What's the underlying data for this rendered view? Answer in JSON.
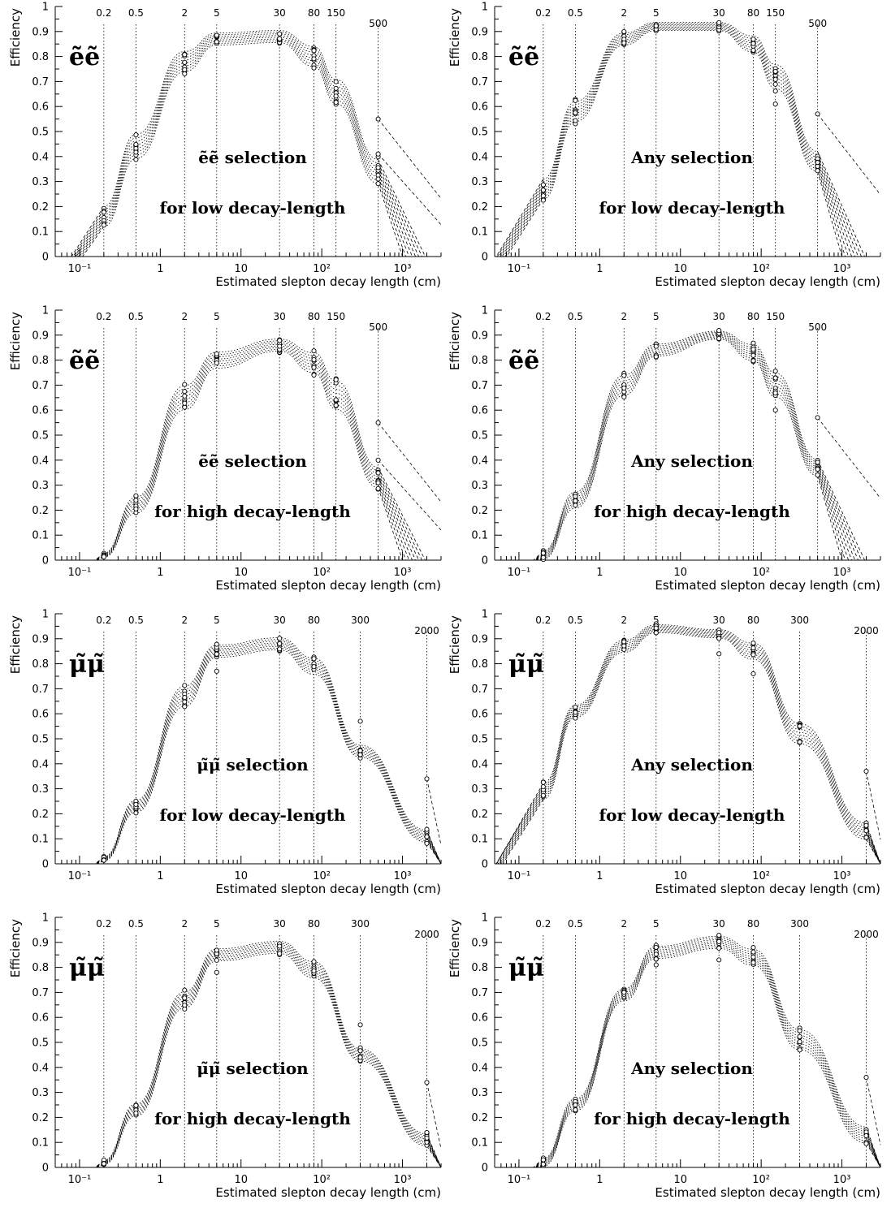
{
  "chart_data": [
    {
      "type": "scatter",
      "particle_label": "ẽẽ",
      "selection_label": "ẽẽ selection",
      "range_label": "for low decay-length",
      "ylabel": "Efficiency",
      "xlabel": "Estimated slepton decay length (cm)",
      "x_scale": "log",
      "xlim": [
        0.05,
        3000
      ],
      "ylim": [
        0,
        1
      ],
      "y_ticks": [
        "0",
        "0.1",
        "0.2",
        "0.3",
        "0.4",
        "0.5",
        "0.6",
        "0.7",
        "0.8",
        "0.9",
        "1"
      ],
      "x_ticks": [
        "10⁻¹",
        "1",
        "10",
        "10²",
        "10³"
      ],
      "markers": [
        0.2,
        0.5,
        2,
        5,
        30,
        80,
        150,
        500
      ],
      "marker_labels": [
        "0.2",
        "0.5",
        "2",
        "5",
        "30",
        "80",
        "150",
        "500"
      ],
      "mean_efficiency": [
        0.16,
        0.44,
        0.78,
        0.87,
        0.88,
        0.8,
        0.66,
        0.34
      ],
      "spread": [
        0.05,
        0.06,
        0.05,
        0.03,
        0.03,
        0.05,
        0.06,
        0.06
      ],
      "outliers": [
        {
          "x": 500,
          "y": 0.55
        },
        {
          "x": 500,
          "y": 0.41
        }
      ]
    },
    {
      "type": "scatter",
      "particle_label": "ẽẽ",
      "selection_label": "Any selection",
      "range_label": "for low decay-length",
      "ylabel": "Efficiency",
      "xlabel": "Estimated slepton decay length (cm)",
      "x_scale": "log",
      "xlim": [
        0.05,
        3000
      ],
      "ylim": [
        0,
        1
      ],
      "y_ticks": [
        "0",
        "0.1",
        "0.2",
        "0.3",
        "0.4",
        "0.5",
        "0.6",
        "0.7",
        "0.8",
        "0.9",
        "1"
      ],
      "x_ticks": [
        "10⁻¹",
        "1",
        "10",
        "10²",
        "10³"
      ],
      "markers": [
        0.2,
        0.5,
        2,
        5,
        30,
        80,
        150,
        500
      ],
      "marker_labels": [
        "0.2",
        "0.5",
        "2",
        "5",
        "30",
        "80",
        "150",
        "500"
      ],
      "mean_efficiency": [
        0.27,
        0.58,
        0.87,
        0.92,
        0.92,
        0.85,
        0.72,
        0.38
      ],
      "spread": [
        0.05,
        0.05,
        0.03,
        0.02,
        0.02,
        0.04,
        0.06,
        0.05
      ],
      "outliers": [
        {
          "x": 500,
          "y": 0.57
        },
        {
          "x": 150,
          "y": 0.61
        }
      ]
    },
    {
      "type": "scatter",
      "particle_label": "ẽẽ",
      "selection_label": "ẽẽ selection",
      "range_label": "for high decay-length",
      "ylabel": "Efficiency",
      "xlabel": "Estimated slepton decay length (cm)",
      "x_scale": "log",
      "xlim": [
        0.05,
        3000
      ],
      "ylim": [
        0,
        1
      ],
      "y_ticks": [
        "0",
        "0.1",
        "0.2",
        "0.3",
        "0.4",
        "0.5",
        "0.6",
        "0.7",
        "0.8",
        "0.9",
        "1"
      ],
      "x_ticks": [
        "10⁻¹",
        "1",
        "10",
        "10²",
        "10³"
      ],
      "markers": [
        0.2,
        0.5,
        2,
        5,
        30,
        80,
        150,
        500
      ],
      "marker_labels": [
        "0.2",
        "0.5",
        "2",
        "5",
        "30",
        "80",
        "150",
        "500"
      ],
      "mean_efficiency": [
        0.02,
        0.22,
        0.65,
        0.8,
        0.86,
        0.79,
        0.66,
        0.33
      ],
      "spread": [
        0.01,
        0.04,
        0.06,
        0.04,
        0.03,
        0.05,
        0.07,
        0.05
      ],
      "outliers": [
        {
          "x": 500,
          "y": 0.55
        },
        {
          "x": 500,
          "y": 0.4
        }
      ]
    },
    {
      "type": "scatter",
      "particle_label": "ẽẽ",
      "selection_label": "Any selection",
      "range_label": "for high decay-length",
      "ylabel": "Efficiency",
      "xlabel": "Estimated slepton decay length (cm)",
      "x_scale": "log",
      "xlim": [
        0.05,
        3000
      ],
      "ylim": [
        0,
        1
      ],
      "y_ticks": [
        "0",
        "0.1",
        "0.2",
        "0.3",
        "0.4",
        "0.5",
        "0.6",
        "0.7",
        "0.8",
        "0.9",
        "1"
      ],
      "x_ticks": [
        "10⁻¹",
        "1",
        "10",
        "10²",
        "10³"
      ],
      "markers": [
        0.2,
        0.5,
        2,
        5,
        30,
        80,
        150,
        500
      ],
      "marker_labels": [
        "0.2",
        "0.5",
        "2",
        "5",
        "30",
        "80",
        "150",
        "500"
      ],
      "mean_efficiency": [
        0.02,
        0.24,
        0.7,
        0.84,
        0.9,
        0.83,
        0.7,
        0.37
      ],
      "spread": [
        0.02,
        0.04,
        0.05,
        0.03,
        0.02,
        0.04,
        0.06,
        0.04
      ],
      "outliers": [
        {
          "x": 500,
          "y": 0.57
        },
        {
          "x": 150,
          "y": 0.6
        }
      ]
    },
    {
      "type": "scatter",
      "particle_label": "μ̃μ̃",
      "selection_label": "μ̃μ̃ selection",
      "range_label": "for low decay-length",
      "ylabel": "Efficiency",
      "xlabel": "Estimated slepton decay length (cm)",
      "x_scale": "log",
      "xlim": [
        0.05,
        3000
      ],
      "ylim": [
        0,
        1
      ],
      "y_ticks": [
        "0",
        "0.1",
        "0.2",
        "0.3",
        "0.4",
        "0.5",
        "0.6",
        "0.7",
        "0.8",
        "0.9",
        "1"
      ],
      "x_ticks": [
        "10⁻¹",
        "1",
        "10",
        "10²",
        "10³"
      ],
      "markers": [
        0.2,
        0.5,
        2,
        5,
        30,
        80,
        300,
        2000
      ],
      "marker_labels": [
        "0.2",
        "0.5",
        "2",
        "5",
        "30",
        "80",
        "300",
        "2000"
      ],
      "mean_efficiency": [
        0.02,
        0.23,
        0.67,
        0.85,
        0.88,
        0.79,
        0.45,
        0.11
      ],
      "spread": [
        0.01,
        0.03,
        0.05,
        0.03,
        0.03,
        0.04,
        0.03,
        0.03
      ],
      "outliers": [
        {
          "x": 2000,
          "y": 0.34
        },
        {
          "x": 300,
          "y": 0.57
        },
        {
          "x": 5,
          "y": 0.77
        }
      ]
    },
    {
      "type": "scatter",
      "particle_label": "μ̃μ̃",
      "selection_label": "Any selection",
      "range_label": "for low decay-length",
      "ylabel": "Efficiency",
      "xlabel": "Estimated slepton decay length (cm)",
      "x_scale": "log",
      "xlim": [
        0.05,
        3000
      ],
      "ylim": [
        0,
        1
      ],
      "y_ticks": [
        "0",
        "0.1",
        "0.2",
        "0.3",
        "0.4",
        "0.5",
        "0.6",
        "0.7",
        "0.8",
        "0.9",
        "1"
      ],
      "x_ticks": [
        "10⁻¹",
        "1",
        "10",
        "10²",
        "10³"
      ],
      "markers": [
        0.2,
        0.5,
        2,
        5,
        30,
        80,
        300,
        2000
      ],
      "marker_labels": [
        "0.2",
        "0.5",
        "2",
        "5",
        "30",
        "80",
        "300",
        "2000"
      ],
      "mean_efficiency": [
        0.29,
        0.61,
        0.87,
        0.94,
        0.92,
        0.85,
        0.52,
        0.13
      ],
      "spread": [
        0.04,
        0.03,
        0.03,
        0.02,
        0.02,
        0.04,
        0.05,
        0.04
      ],
      "outliers": [
        {
          "x": 2000,
          "y": 0.37
        },
        {
          "x": 30,
          "y": 0.84
        },
        {
          "x": 80,
          "y": 0.76
        }
      ]
    },
    {
      "type": "scatter",
      "particle_label": "μ̃μ̃",
      "selection_label": "μ̃μ̃ selection",
      "range_label": "for high decay-length",
      "ylabel": "Efficiency",
      "xlabel": "Estimated slepton decay length (cm)",
      "x_scale": "log",
      "xlim": [
        0.05,
        3000
      ],
      "ylim": [
        0,
        1
      ],
      "y_ticks": [
        "0",
        "0.1",
        "0.2",
        "0.3",
        "0.4",
        "0.5",
        "0.6",
        "0.7",
        "0.8",
        "0.9",
        "1"
      ],
      "x_ticks": [
        "10⁻¹",
        "1",
        "10",
        "10²",
        "10³"
      ],
      "markers": [
        0.2,
        0.5,
        2,
        5,
        30,
        80,
        300,
        2000
      ],
      "marker_labels": [
        "0.2",
        "0.5",
        "2",
        "5",
        "30",
        "80",
        "300",
        "2000"
      ],
      "mean_efficiency": [
        0.02,
        0.23,
        0.67,
        0.85,
        0.88,
        0.79,
        0.45,
        0.11
      ],
      "spread": [
        0.01,
        0.03,
        0.04,
        0.03,
        0.03,
        0.04,
        0.03,
        0.03
      ],
      "outliers": [
        {
          "x": 2000,
          "y": 0.34
        },
        {
          "x": 300,
          "y": 0.57
        },
        {
          "x": 5,
          "y": 0.78
        }
      ]
    },
    {
      "type": "scatter",
      "particle_label": "μ̃μ̃",
      "selection_label": "Any selection",
      "range_label": "for high decay-length",
      "ylabel": "Efficiency",
      "xlabel": "Estimated slepton decay length (cm)",
      "x_scale": "log",
      "xlim": [
        0.05,
        3000
      ],
      "ylim": [
        0,
        1
      ],
      "y_ticks": [
        "0",
        "0.1",
        "0.2",
        "0.3",
        "0.4",
        "0.5",
        "0.6",
        "0.7",
        "0.8",
        "0.9",
        "1"
      ],
      "x_ticks": [
        "10⁻¹",
        "1",
        "10",
        "10²",
        "10³"
      ],
      "markers": [
        0.2,
        0.5,
        2,
        5,
        30,
        80,
        300,
        2000
      ],
      "marker_labels": [
        "0.2",
        "0.5",
        "2",
        "5",
        "30",
        "80",
        "300",
        "2000"
      ],
      "mean_efficiency": [
        0.02,
        0.25,
        0.69,
        0.86,
        0.9,
        0.84,
        0.51,
        0.13
      ],
      "spread": [
        0.02,
        0.03,
        0.03,
        0.03,
        0.03,
        0.04,
        0.05,
        0.04
      ],
      "outliers": [
        {
          "x": 2000,
          "y": 0.36
        },
        {
          "x": 30,
          "y": 0.83
        },
        {
          "x": 5,
          "y": 0.81
        }
      ]
    }
  ]
}
